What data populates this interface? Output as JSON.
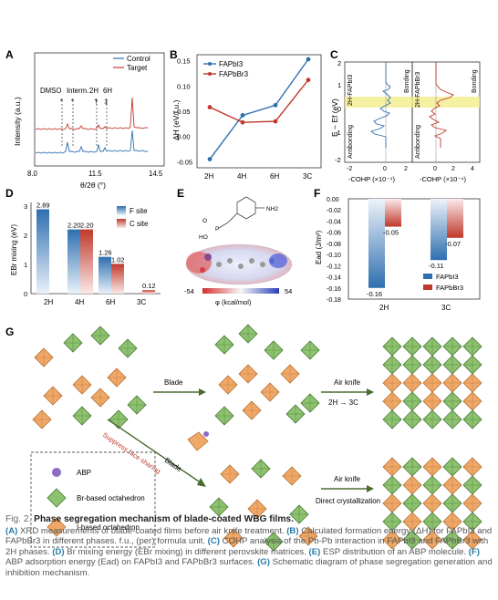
{
  "figure": {
    "panel_labels": [
      "A",
      "B",
      "C",
      "D",
      "E",
      "F",
      "G"
    ]
  },
  "panel_a": {
    "legend": [
      "Control",
      "Target"
    ],
    "ylabel": "Intensity (a.u.)",
    "xlabel": "θ/2θ (°)",
    "xticks": [
      "8.0",
      "11.5",
      "14.5"
    ],
    "annotations": [
      "DMSO",
      "Interm.",
      "2H",
      "6H"
    ],
    "markers": [
      "*",
      "*",
      "†",
      "‡"
    ],
    "colors": {
      "control": "#2e6fb0",
      "target": "#c0392b"
    }
  },
  "panel_c": {
    "ylabel": "E − Ef (eV)",
    "xlabel_left": "-COHP (×10⁻⁴)",
    "xlabel_right": "-COHP (×10⁻⁴)",
    "yticks": [
      "2",
      "1",
      "0",
      "-1",
      "-2"
    ],
    "xticks_left": [
      "-2",
      "0",
      "2"
    ],
    "xticks_right": [
      "0",
      "2",
      "4"
    ],
    "phase_left": "2H-FAPbI3",
    "phase_right": "2H-FAPbBr3",
    "bonding": "Bonding",
    "antibonding": "Antibonding"
  },
  "panel_e": {
    "colorbar_min": "-54",
    "colorbar_max": "54",
    "colorbar_label": "φ (kcal/mol)",
    "nh2": "NH2",
    "ho": "HO",
    "oh": "HO",
    "p": "P",
    "o": "O"
  },
  "chart_data": [
    {
      "type": "line",
      "panel": "B",
      "xlabel": "",
      "ylabel": "ΔH (eV/f.u.)",
      "categories": [
        "2H",
        "4H",
        "6H",
        "3C"
      ],
      "ylim": [
        -0.05,
        0.15
      ],
      "yticks": [
        "0.15",
        "0.10",
        "0.05",
        "0.00",
        "-0.05"
      ],
      "series": [
        {
          "name": "FAPbI3",
          "values": [
            -0.045,
            0.042,
            0.062,
            0.153
          ],
          "color": "#2e6fb0"
        },
        {
          "name": "FAPbBr3",
          "values": [
            0.058,
            0.028,
            0.03,
            0.112
          ],
          "color": "#c0392b"
        }
      ]
    },
    {
      "type": "bar",
      "panel": "D",
      "ylabel": "EBr mixing (eV)",
      "categories": [
        "2H",
        "4H",
        "6H",
        "3C"
      ],
      "ylim": [
        0,
        3
      ],
      "yticks": [
        "3",
        "2",
        "1",
        "0"
      ],
      "series": [
        {
          "name": "F site",
          "values": [
            2.89,
            2.2,
            1.26,
            null
          ],
          "color": "#2e6fb0"
        },
        {
          "name": "C site",
          "values": [
            null,
            2.2,
            1.02,
            0.12
          ],
          "color": "#c0392b"
        }
      ],
      "data_labels": [
        "2.89",
        "2.20",
        "2.20",
        "1.26",
        "1.02",
        "0.12"
      ]
    },
    {
      "type": "bar",
      "panel": "F",
      "ylabel": "Ead (J/m²)",
      "categories": [
        "2H",
        "3C"
      ],
      "ylim": [
        -0.18,
        0.0
      ],
      "yticks": [
        "0.00",
        "-0.02",
        "-0.04",
        "-0.06",
        "-0.08",
        "-0.10",
        "-0.12",
        "-0.14",
        "-0.16",
        "-0.18"
      ],
      "series": [
        {
          "name": "FAPbI3",
          "values": [
            -0.16,
            -0.11
          ],
          "color": "#2e6fb0"
        },
        {
          "name": "FAPbBr3",
          "values": [
            -0.05,
            -0.07
          ],
          "color": "#c0392b"
        }
      ],
      "data_labels": [
        "-0.16",
        "-0.05",
        "-0.11",
        "-0.07"
      ]
    }
  ],
  "panel_g": {
    "blade_top": "Blade",
    "blade_mid": "Blade",
    "air_knife_top": "Air knife",
    "transition": "2H → 3C",
    "suppress": "Suppress face sharing",
    "air_knife_bottom": "Air knife",
    "direct": "Direct crystallization",
    "legend": [
      "ABP",
      "Br-based octahedron",
      "I-based octahedron"
    ],
    "colors": {
      "green": "#8dc26f",
      "orange": "#f0a868",
      "purple": "#8e6cc4"
    }
  },
  "caption": {
    "fig_label": "Fig. 2.",
    "title": "Phase segregation mechanism of blade-coated WBG films.",
    "parts": [
      {
        "label": "(A)",
        "text": " XRD measurements of blade-coated films before air knife treatment. "
      },
      {
        "label": "(B)",
        "text": " Calculated formation energy (ΔH) for FAPbI3 and FAPbBr3 in different phases. f.u., (per) formula unit. "
      },
      {
        "label": "(C)",
        "text": " COHP analysis of the Pb-Pb interaction in FAPbI3 and FAPbBr3 with 2H phases. "
      },
      {
        "label": "(D)",
        "text": " Br mixing energy (EBr mixing) in different perovskite matrices. "
      },
      {
        "label": "(E)",
        "text": " ESP distribution of an ABP molecule. "
      },
      {
        "label": "(F)",
        "text": " ABP adsorption energy (Ead) on FAPbI3 and FAPbBr3 surfaces. "
      },
      {
        "label": "(G)",
        "text": " Schematic diagram of phase segregation generation and inhibition mechanism."
      }
    ]
  }
}
